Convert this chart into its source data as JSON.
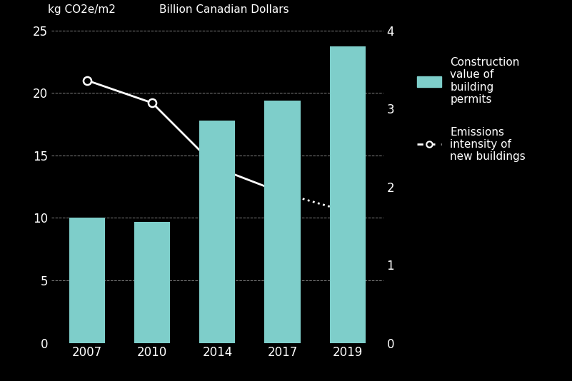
{
  "years": [
    "2007",
    "2010",
    "2014",
    "2017",
    "2019"
  ],
  "bar_values_billions": [
    1.6,
    1.55,
    2.85,
    3.1,
    3.8
  ],
  "bar_color": "#7ECECA",
  "line_y_kgco2": [
    21.0,
    19.2,
    14.0,
    12.0,
    10.5
  ],
  "line_style_segment": [
    "solid",
    "solid",
    "solid",
    "dotted"
  ],
  "left_ylabel": "kg CO2e/m2",
  "right_ylabel": "Billion Canadian Dollars",
  "left_ylim": [
    0,
    25
  ],
  "left_yticks": [
    0,
    5,
    10,
    15,
    20,
    25
  ],
  "right_ylim": [
    0,
    4
  ],
  "right_yticks": [
    0,
    1,
    2,
    3,
    4
  ],
  "grid_color": "#888888",
  "background_color": "#000000",
  "text_color": "#ffffff",
  "legend_bar_label": "Construction\nvalue of\nbuilding\npermits",
  "legend_line_label": "Emissions\nintensity of\nnew buildings",
  "marker_facecolor": "#000000",
  "marker_edgecolor": "#ffffff",
  "line_color": "#ffffff",
  "line_width": 2.0,
  "marker_size": 8,
  "bar_width": 0.55,
  "xlim_left": -0.55,
  "xlim_right": 4.55,
  "fontsize_ticks": 12,
  "fontsize_labels": 11
}
